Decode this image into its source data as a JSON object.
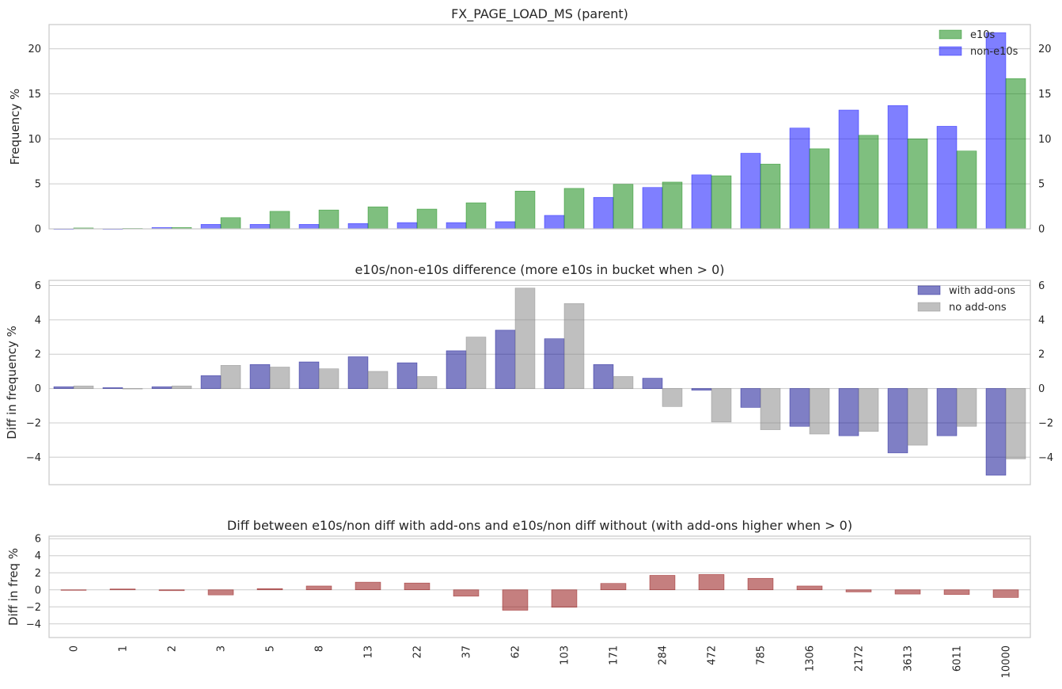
{
  "chart_data": [
    {
      "type": "bar",
      "title": "FX_PAGE_LOAD_MS (parent)",
      "xlabel": "",
      "ylabel": "Frequency %",
      "ylim": [
        0,
        22.7
      ],
      "yticks": [
        0,
        5,
        10,
        15,
        20
      ],
      "grid": true,
      "legend": "top-right",
      "categories": [
        "0",
        "1",
        "2",
        "3",
        "5",
        "8",
        "13",
        "22",
        "37",
        "62",
        "103",
        "171",
        "284",
        "472",
        "785",
        "1306",
        "2172",
        "3613",
        "6011",
        "10000"
      ],
      "series": [
        {
          "name": "non-e10s",
          "color": "#0000ff",
          "values": [
            0.0,
            0.0,
            0.15,
            0.5,
            0.5,
            0.5,
            0.6,
            0.7,
            0.7,
            0.8,
            1.5,
            3.5,
            4.6,
            6.0,
            8.4,
            11.2,
            13.2,
            13.7,
            11.4,
            21.8
          ]
        },
        {
          "name": "e10s",
          "color": "#008000",
          "values": [
            0.1,
            0.05,
            0.15,
            1.25,
            1.95,
            2.1,
            2.45,
            2.2,
            2.9,
            4.2,
            4.5,
            4.95,
            5.2,
            5.9,
            7.2,
            8.9,
            10.4,
            10.0,
            8.65,
            16.7
          ]
        }
      ]
    },
    {
      "type": "bar",
      "title": "e10s/non-e10s difference (more e10s in bucket when > 0)",
      "xlabel": "",
      "ylabel": "Diff in frequency %",
      "ylim": [
        -5.6,
        6.3
      ],
      "yticks": [
        -4,
        -2,
        0,
        2,
        4,
        6
      ],
      "grid": true,
      "legend": "top-right",
      "categories": [
        "0",
        "1",
        "2",
        "3",
        "5",
        "8",
        "13",
        "22",
        "37",
        "62",
        "103",
        "171",
        "284",
        "472",
        "785",
        "1306",
        "2172",
        "3613",
        "6011",
        "10000"
      ],
      "series": [
        {
          "name": "with add-ons",
          "color": "#00008b",
          "values": [
            0.1,
            0.05,
            0.1,
            0.75,
            1.4,
            1.55,
            1.85,
            1.5,
            2.2,
            3.4,
            2.9,
            1.4,
            0.6,
            -0.1,
            -1.1,
            -2.2,
            -2.75,
            -3.75,
            -2.75,
            -5.05
          ]
        },
        {
          "name": "no add-ons",
          "color": "#808080",
          "values": [
            0.15,
            0.0,
            0.15,
            1.35,
            1.25,
            1.15,
            1.0,
            0.7,
            3.0,
            5.85,
            4.95,
            0.7,
            -1.05,
            -1.95,
            -2.4,
            -2.65,
            -2.5,
            -3.3,
            -2.2,
            -4.1
          ]
        }
      ]
    },
    {
      "type": "bar",
      "title": "Diff between e10s/non diff with add-ons and e10s/non diff without (with add-ons higher when > 0)",
      "xlabel": "",
      "ylabel": "Diff in freq %",
      "ylim": [
        -5.6,
        6.3
      ],
      "yticks": [
        -4,
        -2,
        0,
        2,
        4,
        6
      ],
      "grid": true,
      "categories": [
        "0",
        "1",
        "2",
        "3",
        "5",
        "8",
        "13",
        "22",
        "37",
        "62",
        "103",
        "171",
        "284",
        "472",
        "785",
        "1306",
        "2172",
        "3613",
        "6011",
        "10000"
      ],
      "series": [
        {
          "name": "",
          "color": "#8b0000",
          "values": [
            -0.05,
            0.1,
            -0.1,
            -0.6,
            0.15,
            0.45,
            0.9,
            0.8,
            -0.75,
            -2.4,
            -2.05,
            0.75,
            1.7,
            1.8,
            1.35,
            0.45,
            -0.25,
            -0.5,
            -0.55,
            -0.9
          ]
        }
      ]
    }
  ]
}
